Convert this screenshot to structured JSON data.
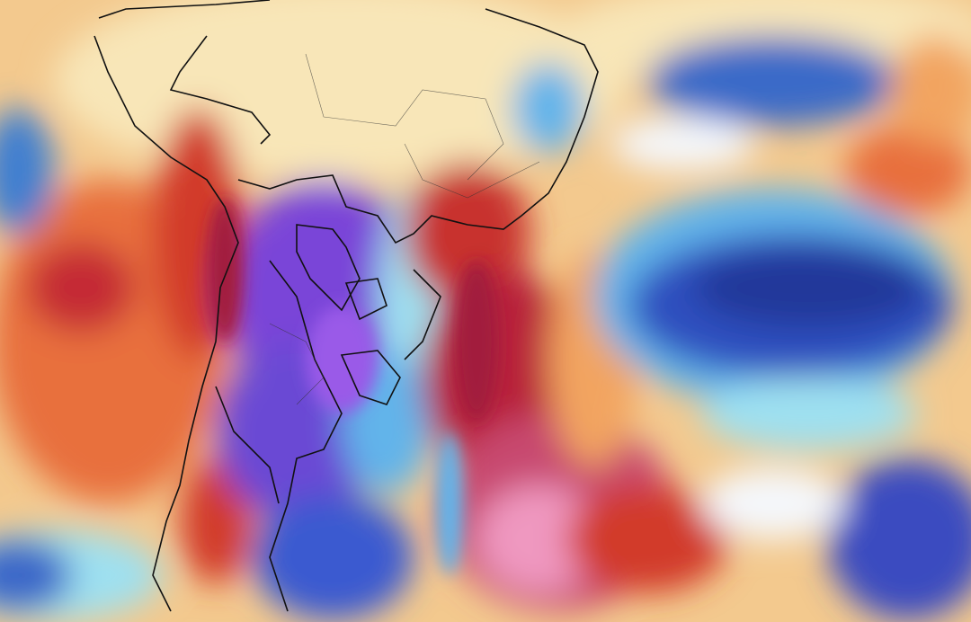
{
  "map": {
    "palette": {
      "pale": "#f8e6b8",
      "orange": "#f2a460",
      "deep_orange": "#e8703c",
      "red": "#d23a2c",
      "dark_red": "#a21e3c",
      "pink": "#e97fb0",
      "purple": "#7a45d8",
      "violet": "#5a3cc8",
      "blue": "#2f4fbf",
      "navy": "#23379a",
      "light_blue": "#62b4ea",
      "cyan": "#9ee0f0",
      "white": "#f4f7fb",
      "border": "#111111"
    }
  }
}
